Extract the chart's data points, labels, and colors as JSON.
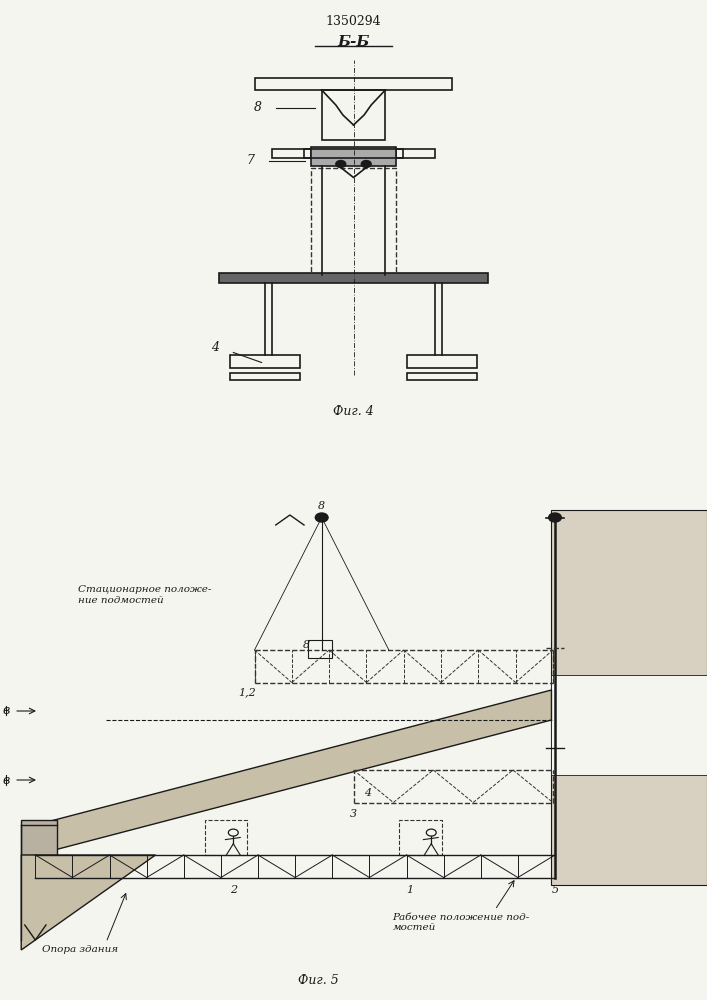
{
  "patent_number": "1350294",
  "fig4_label": "Б-Б",
  "fig4_caption": "Фиг. 4",
  "fig5_caption": "Фиг. 5",
  "label_7": "7",
  "label_8": "8",
  "label_4": "4",
  "label_1": "1",
  "label_2": "2",
  "label_3": "3",
  "label_5": "5",
  "label_12": "1,2",
  "label_B": "в",
  "text_stationary": "Стационарное положе-\nние подмостей",
  "text_working": "Рабочее положение под-\nмостей",
  "text_support": "Опора здания",
  "bg_color": "#f5f5f0",
  "line_color": "#1a1a1a",
  "dashed_color": "#333333"
}
